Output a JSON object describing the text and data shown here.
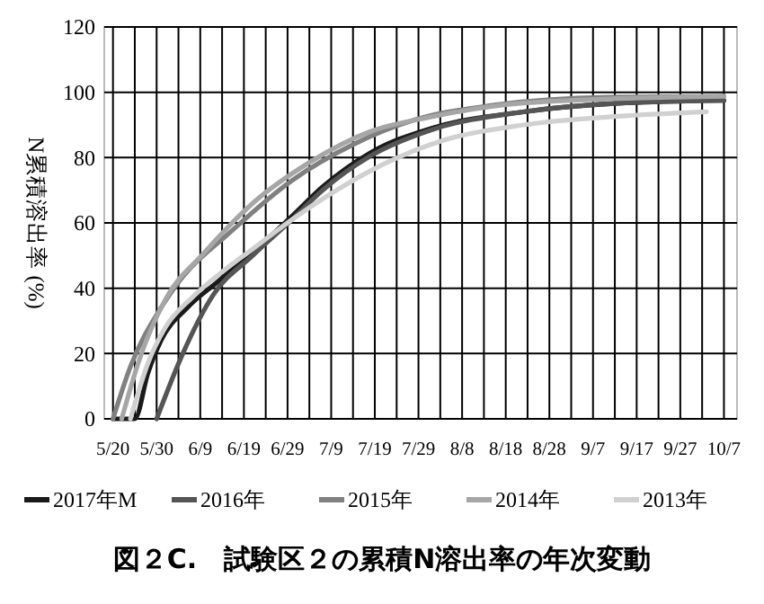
{
  "chart_data": {
    "type": "line",
    "title": "図２C.　試験区２の累積N溶出率の年次変動",
    "ylabel": "N累積溶出率 (%)",
    "xlim": [
      "--05-18",
      "--10-10"
    ],
    "xticks": [
      {
        "value": "--05-20",
        "label": "5/20"
      },
      {
        "value": "--05-25",
        "label": null
      },
      {
        "value": "--05-30",
        "label": "5/30"
      },
      {
        "value": "--06-04",
        "label": null
      },
      {
        "value": "--06-09",
        "label": "6/9"
      },
      {
        "value": "--06-14",
        "label": null
      },
      {
        "value": "--06-19",
        "label": "6/19"
      },
      {
        "value": "--06-24",
        "label": null
      },
      {
        "value": "--06-29",
        "label": "6/29"
      },
      {
        "value": "--07-04",
        "label": null
      },
      {
        "value": "--07-09",
        "label": "7/9"
      },
      {
        "value": "--07-14",
        "label": null
      },
      {
        "value": "--07-19",
        "label": "7/19"
      },
      {
        "value": "--07-24",
        "label": null
      },
      {
        "value": "--07-29",
        "label": "7/29"
      },
      {
        "value": "--08-03",
        "label": null
      },
      {
        "value": "--08-08",
        "label": "8/8"
      },
      {
        "value": "--08-13",
        "label": null
      },
      {
        "value": "--08-18",
        "label": "8/18"
      },
      {
        "value": "--08-23",
        "label": null
      },
      {
        "value": "--08-28",
        "label": "8/28"
      },
      {
        "value": "--09-02",
        "label": null
      },
      {
        "value": "--09-07",
        "label": "9/7"
      },
      {
        "value": "--09-12",
        "label": null
      },
      {
        "value": "--09-17",
        "label": "9/17"
      },
      {
        "value": "--09-22",
        "label": null
      },
      {
        "value": "--09-27",
        "label": "9/27"
      },
      {
        "value": "--10-02",
        "label": null
      },
      {
        "value": "--10-07",
        "label": "10/7"
      }
    ],
    "ylim": [
      0,
      120
    ],
    "yticks": [
      0,
      20,
      40,
      60,
      80,
      100,
      120
    ],
    "grid": true,
    "legend": "bottom",
    "marker": "none",
    "line_style": "solid",
    "series": [
      {
        "name": "2017年M",
        "color": "#1a1a1a",
        "x": [
          "--05-20",
          "--05-25",
          "--05-28",
          "--05-31",
          "--06-06",
          "--06-13",
          "--06-21",
          "--06-30",
          "--07-07",
          "--07-18",
          "--08-01",
          "--08-22",
          "--09-11",
          "--10-07"
        ],
        "values": [
          0,
          0,
          14,
          24,
          34,
          42,
          51,
          62,
          71,
          81.5,
          89,
          94,
          96.5,
          97.5
        ]
      },
      {
        "name": "2016年",
        "color": "#555555",
        "x": [
          "--05-30",
          "--06-05",
          "--06-12",
          "--06-21",
          "--06-30",
          "--07-07",
          "--07-18",
          "--08-01",
          "--08-22",
          "--09-11",
          "--10-07"
        ],
        "values": [
          0,
          20,
          38,
          50,
          61,
          70,
          80.5,
          88.5,
          94,
          96.5,
          97.5
        ]
      },
      {
        "name": "2015年",
        "color": "#808080",
        "x": [
          "--05-20",
          "--05-24",
          "--05-31",
          "--06-03",
          "--06-17",
          "--06-30",
          "--07-14",
          "--07-28",
          "--08-15",
          "--09-11",
          "--10-07"
        ],
        "values": [
          0,
          16,
          34,
          40,
          58.5,
          73,
          84,
          91.5,
          96,
          98.5,
          98.8
        ]
      },
      {
        "name": "2014年",
        "color": "#a6a6a6",
        "x": [
          "--05-22",
          "--05-26",
          "--06-01",
          "--06-10",
          "--06-21",
          "--07-04",
          "--07-18",
          "--08-01",
          "--08-22",
          "--09-25",
          "--10-07"
        ],
        "values": [
          0,
          18,
          36.5,
          51,
          66,
          78.5,
          88,
          92.5,
          96.7,
          98.5,
          98.8
        ]
      },
      {
        "name": "2013年",
        "color": "#d0d0d0",
        "x": [
          "--05-24",
          "--05-28",
          "--06-01",
          "--06-07",
          "--06-14",
          "--06-21",
          "--06-30",
          "--07-09",
          "--07-21",
          "--08-03",
          "--08-22",
          "--09-11",
          "--10-03"
        ],
        "values": [
          0,
          17,
          28,
          37,
          45,
          52,
          61,
          69,
          78,
          85,
          90,
          92.5,
          94
        ]
      }
    ]
  }
}
